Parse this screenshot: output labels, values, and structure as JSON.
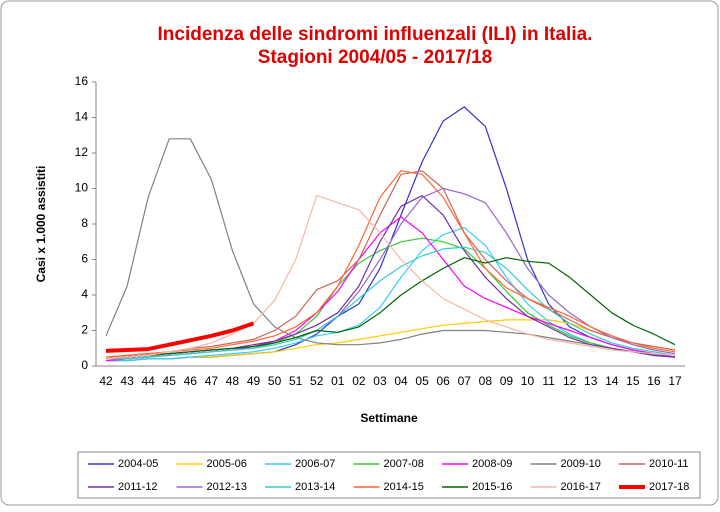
{
  "chart_data": {
    "type": "line",
    "title": "Incidenza delle sindromi influenzali (ILI) in Italia.",
    "subtitle": "Stagioni 2004/05 - 2017/18",
    "x_label": "Settimane",
    "y_label": "Casi x 1.000 assistiti",
    "categories": [
      "42",
      "43",
      "44",
      "45",
      "46",
      "47",
      "48",
      "49",
      "50",
      "51",
      "52",
      "01",
      "02",
      "03",
      "04",
      "05",
      "06",
      "07",
      "08",
      "09",
      "10",
      "11",
      "12",
      "13",
      "14",
      "15",
      "16",
      "17"
    ],
    "ylim": [
      0,
      16
    ],
    "yticks": [
      0,
      2,
      4,
      6,
      8,
      10,
      12,
      14,
      16
    ],
    "legend": "bottom",
    "series": [
      {
        "name": "2004-05",
        "color": "#3333cc",
        "values": [
          0.3,
          0.3,
          0.4,
          0.4,
          0.5,
          0.5,
          0.6,
          0.7,
          0.8,
          1.2,
          1.8,
          2.8,
          3.5,
          5.5,
          8.5,
          11.5,
          13.8,
          14.6,
          13.5,
          10,
          6,
          3.5,
          2.2,
          1.6,
          1.2,
          0.9,
          0.7,
          0.5
        ]
      },
      {
        "name": "2005-06",
        "color": "#ffcc00",
        "values": [
          0.3,
          0.3,
          0.4,
          0.4,
          0.5,
          0.5,
          0.6,
          0.7,
          0.8,
          1.0,
          1.2,
          1.3,
          1.5,
          1.7,
          1.9,
          2.1,
          2.3,
          2.4,
          2.5,
          2.6,
          2.6,
          2.6,
          2.4,
          2.0,
          1.6,
          1.2,
          1.0,
          0.8
        ]
      },
      {
        "name": "2006-07",
        "color": "#33ccff",
        "values": [
          0.3,
          0.3,
          0.4,
          0.4,
          0.5,
          0.6,
          0.7,
          0.8,
          1.0,
          1.3,
          1.7,
          1.9,
          2.3,
          3.3,
          5,
          6.5,
          7.4,
          7.8,
          6.8,
          5,
          3.5,
          2.5,
          1.8,
          1.3,
          1.0,
          0.8,
          0.6,
          0.5
        ]
      },
      {
        "name": "2007-08",
        "color": "#33cc33",
        "values": [
          0.4,
          0.4,
          0.5,
          0.6,
          0.7,
          0.8,
          0.9,
          1.0,
          1.3,
          1.8,
          2.8,
          4.5,
          5.8,
          6.5,
          7.0,
          7.2,
          7.0,
          6.6,
          5.5,
          4.2,
          3.0,
          2.3,
          1.7,
          1.3,
          1.0,
          0.8,
          0.6,
          0.5
        ]
      },
      {
        "name": "2008-09",
        "color": "#ff00ff",
        "values": [
          0.3,
          0.4,
          0.5,
          0.6,
          0.7,
          0.8,
          0.9,
          1.1,
          1.4,
          2.0,
          3.0,
          4.2,
          6.0,
          7.5,
          8.4,
          7.5,
          6.0,
          4.5,
          3.8,
          3.3,
          2.8,
          2.4,
          2.0,
          1.6,
          1.2,
          0.9,
          0.7,
          0.5
        ]
      },
      {
        "name": "2009-10",
        "color": "#808080",
        "values": [
          1.7,
          4.5,
          9.5,
          12.8,
          12.8,
          10.5,
          6.5,
          3.5,
          2.2,
          1.6,
          1.3,
          1.2,
          1.2,
          1.3,
          1.5,
          1.8,
          2.0,
          2.0,
          2.0,
          1.9,
          1.8,
          1.6,
          1.4,
          1.2,
          1.0,
          0.8,
          0.6,
          0.5
        ]
      },
      {
        "name": "2010-11",
        "color": "#cc6655",
        "values": [
          0.5,
          0.6,
          0.7,
          0.8,
          1.0,
          1.1,
          1.3,
          1.5,
          2.0,
          2.8,
          4.3,
          4.8,
          6.0,
          8.5,
          10.8,
          11,
          10.0,
          7.5,
          6.0,
          4.8,
          3.8,
          3.2,
          2.6,
          2.0,
          1.6,
          1.3,
          1.1,
          0.9
        ]
      },
      {
        "name": "2011-12",
        "color": "#7030a0",
        "values": [
          0.4,
          0.5,
          0.6,
          0.7,
          0.8,
          0.9,
          1.0,
          1.2,
          1.4,
          1.8,
          2.3,
          3.0,
          4.5,
          7,
          9.0,
          9.6,
          8.5,
          6.5,
          5.0,
          3.8,
          2.8,
          2.2,
          1.6,
          1.2,
          1.0,
          0.8,
          0.6,
          0.5
        ]
      },
      {
        "name": "2012-13",
        "color": "#9966cc",
        "values": [
          0.4,
          0.5,
          0.6,
          0.7,
          0.8,
          0.9,
          1.0,
          1.1,
          1.3,
          1.6,
          2.0,
          2.8,
          4.2,
          6,
          8,
          9.5,
          10,
          9.7,
          9.2,
          7.5,
          5.5,
          4.0,
          3.0,
          2.2,
          1.6,
          1.2,
          0.9,
          0.7
        ]
      },
      {
        "name": "2013-14",
        "color": "#33cccc",
        "values": [
          0.4,
          0.4,
          0.5,
          0.6,
          0.7,
          0.8,
          0.9,
          1.0,
          1.2,
          1.5,
          2.0,
          2.8,
          3.8,
          4.8,
          5.6,
          6.2,
          6.6,
          6.7,
          6.4,
          5.5,
          4.3,
          3.2,
          2.4,
          1.8,
          1.3,
          1.0,
          0.8,
          0.6
        ]
      },
      {
        "name": "2014-15",
        "color": "#ff6633",
        "values": [
          0.5,
          0.6,
          0.7,
          0.8,
          0.9,
          1.0,
          1.2,
          1.4,
          1.7,
          2.2,
          3.0,
          4.5,
          6.8,
          9.5,
          11,
          10.8,
          9.5,
          7.5,
          5.5,
          4.4,
          3.8,
          3.3,
          2.8,
          2.2,
          1.7,
          1.3,
          1.0,
          0.8
        ]
      },
      {
        "name": "2015-16",
        "color": "#006600",
        "values": [
          0.4,
          0.5,
          0.6,
          0.7,
          0.8,
          0.9,
          1.0,
          1.1,
          1.3,
          1.6,
          2.0,
          1.9,
          2.2,
          3.0,
          4.0,
          4.8,
          5.5,
          6.1,
          5.8,
          6.1,
          5.9,
          5.8,
          5.0,
          4.0,
          3.0,
          2.3,
          1.8,
          1.2
        ]
      },
      {
        "name": "2016-17",
        "color": "#f4b6a6",
        "values": [
          0.4,
          0.5,
          0.6,
          0.8,
          1.0,
          1.3,
          1.8,
          2.4,
          3.7,
          6,
          9.6,
          9.2,
          8.8,
          7.5,
          6,
          4.8,
          3.8,
          3.2,
          2.6,
          2.2,
          1.8,
          1.5,
          1.3,
          1.1,
          0.9,
          0.8,
          0.7,
          0.6
        ]
      },
      {
        "name": "2017-18",
        "color": "#ff0000",
        "width": 4,
        "values": [
          0.85,
          0.9,
          0.95,
          1.2,
          1.45,
          1.7,
          2.0,
          2.4,
          null,
          null,
          null,
          null,
          null,
          null,
          null,
          null,
          null,
          null,
          null,
          null,
          null,
          null,
          null,
          null,
          null,
          null,
          null,
          null
        ]
      }
    ]
  }
}
